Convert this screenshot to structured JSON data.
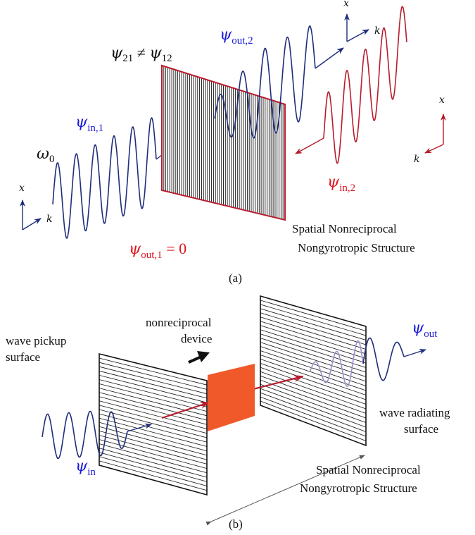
{
  "colors": {
    "blue": "#1f2d7a",
    "blue_text": "#1a1adb",
    "red": "#b81c2c",
    "red_text": "#e0161e",
    "orange": "#f0592a",
    "light_purple": "#9d8fc9",
    "black": "#111111",
    "gray": "#555555"
  },
  "panel_a": {
    "label": "(a)",
    "omega": "ω",
    "omega_sub": "0",
    "psi_in1_main": "ψ",
    "psi_in1_sub": "in,1",
    "psi_out2_main": "ψ",
    "psi_out2_sub": "out,2",
    "psi_in2_main": "ψ",
    "psi_in2_sub": "in,2",
    "psi_out1_main": "ψ",
    "psi_out1_sub": "out,1",
    "psi_out1_eq": " = 0",
    "relation_lhs": "ψ",
    "relation_lhs_sub": "21",
    "relation_op": " ≠ ",
    "relation_rhs": "ψ",
    "relation_rhs_sub": "12",
    "structure_line1": "Spatial Nonreciprocal",
    "structure_line2": "Nongyrotropic Structure",
    "axis_x": "x",
    "axis_k": "k"
  },
  "panel_b": {
    "label": "(b)",
    "pickup_line1": "wave pickup",
    "pickup_line2": "surface",
    "device_line1": "nonreciprocal",
    "device_line2": "device",
    "radiating_line1": "wave radiating",
    "radiating_line2": "surface",
    "psi_in_main": "ψ",
    "psi_in_sub": "in",
    "psi_out_main": "ψ",
    "psi_out_sub": "out",
    "structure_line1": "Spatial Nonreciprocal",
    "structure_line2": "Nongyrotropic Structure"
  }
}
